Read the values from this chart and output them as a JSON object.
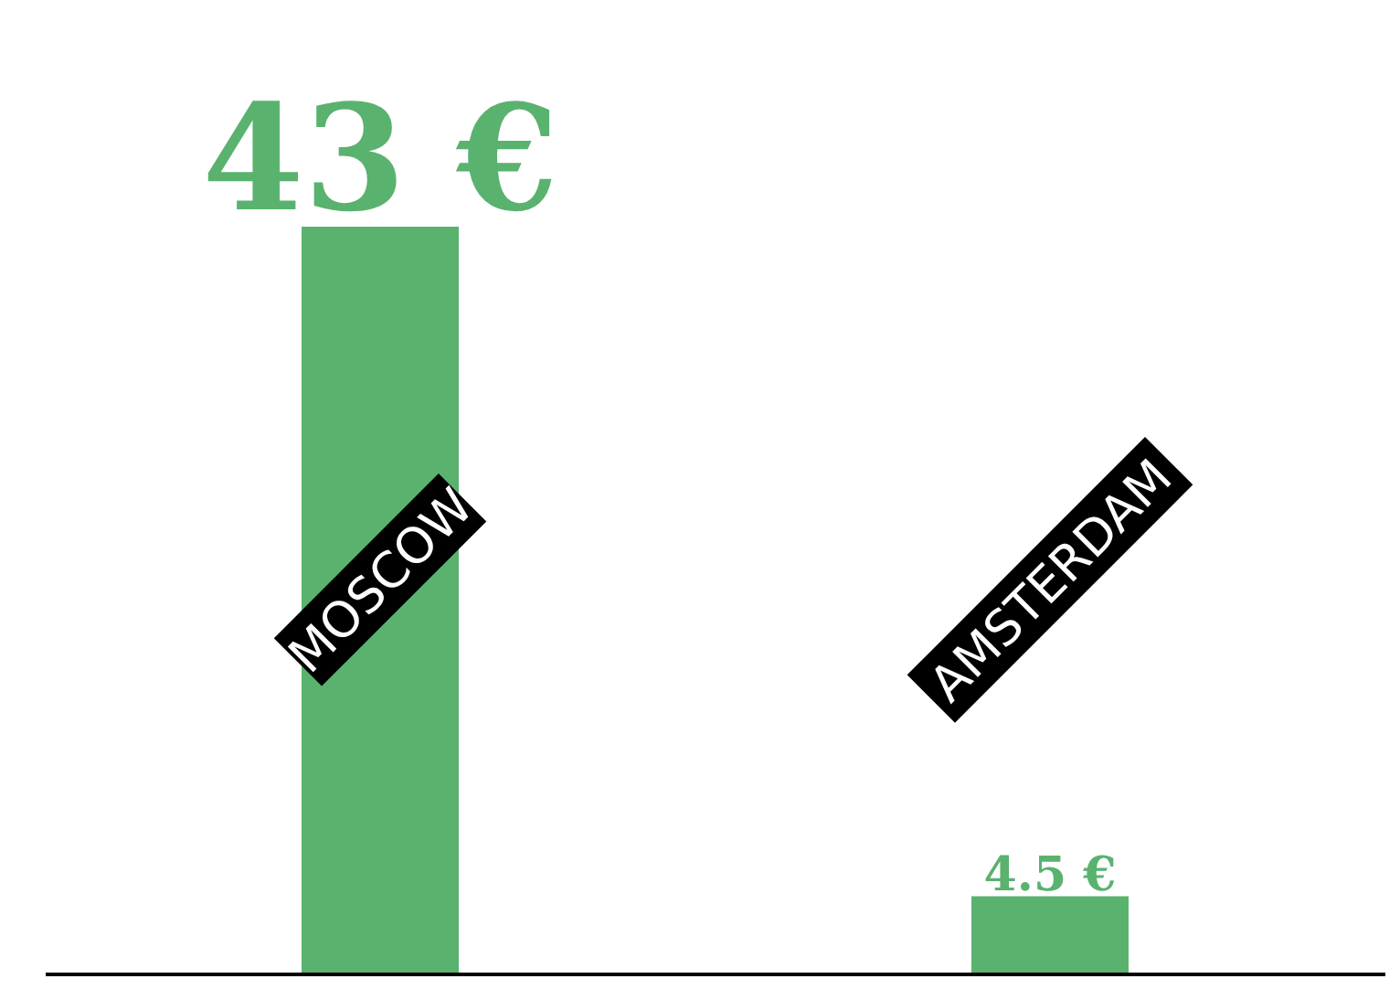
{
  "chart_data": {
    "type": "bar",
    "categories": [
      "MOSCOW",
      "AMSTERDAM"
    ],
    "values": [
      43,
      4.5
    ],
    "value_labels": [
      "43 €",
      "4.5 €"
    ],
    "color": "#5ab26f"
  }
}
